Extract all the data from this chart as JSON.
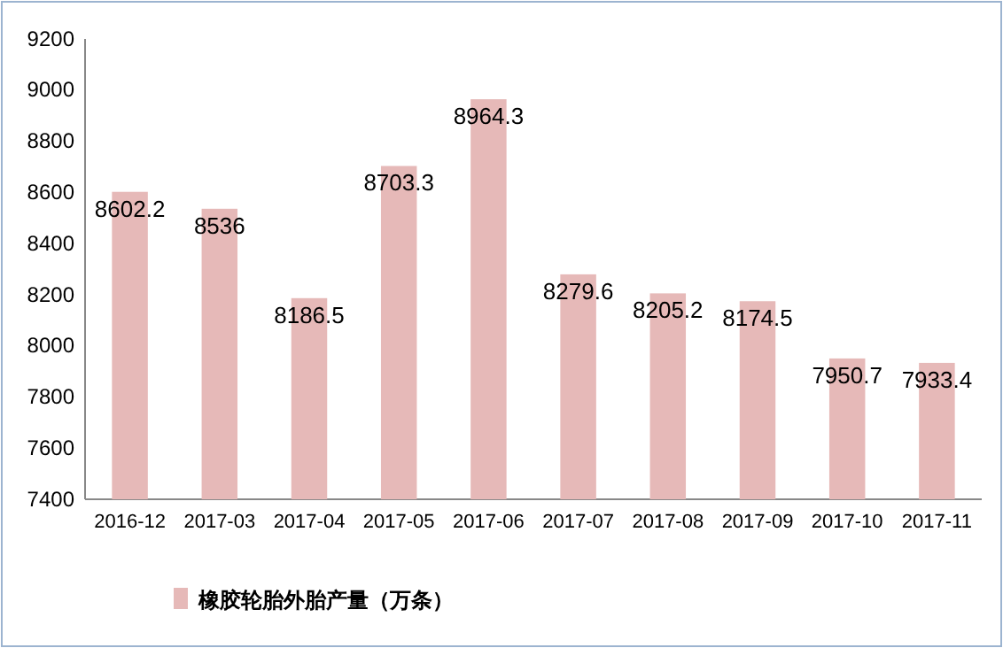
{
  "chart_data": {
    "type": "bar",
    "categories": [
      "2016-12",
      "2017-03",
      "2017-04",
      "2017-05",
      "2017-06",
      "2017-07",
      "2017-08",
      "2017-09",
      "2017-10",
      "2017-11"
    ],
    "series": [
      {
        "name": "橡胶轮胎外胎产量（万条）",
        "color": "#e6b9b8",
        "values": [
          8602.2,
          8536,
          8186.5,
          8703.3,
          8964.3,
          8279.6,
          8205.2,
          8174.5,
          7950.7,
          7933.4
        ]
      }
    ],
    "ylim": [
      7400,
      9200
    ],
    "yticks": [
      7400,
      7600,
      7800,
      8000,
      8200,
      8400,
      8600,
      8800,
      9000,
      9200
    ],
    "data_labels": true,
    "legend": "bottom",
    "grid": false
  }
}
